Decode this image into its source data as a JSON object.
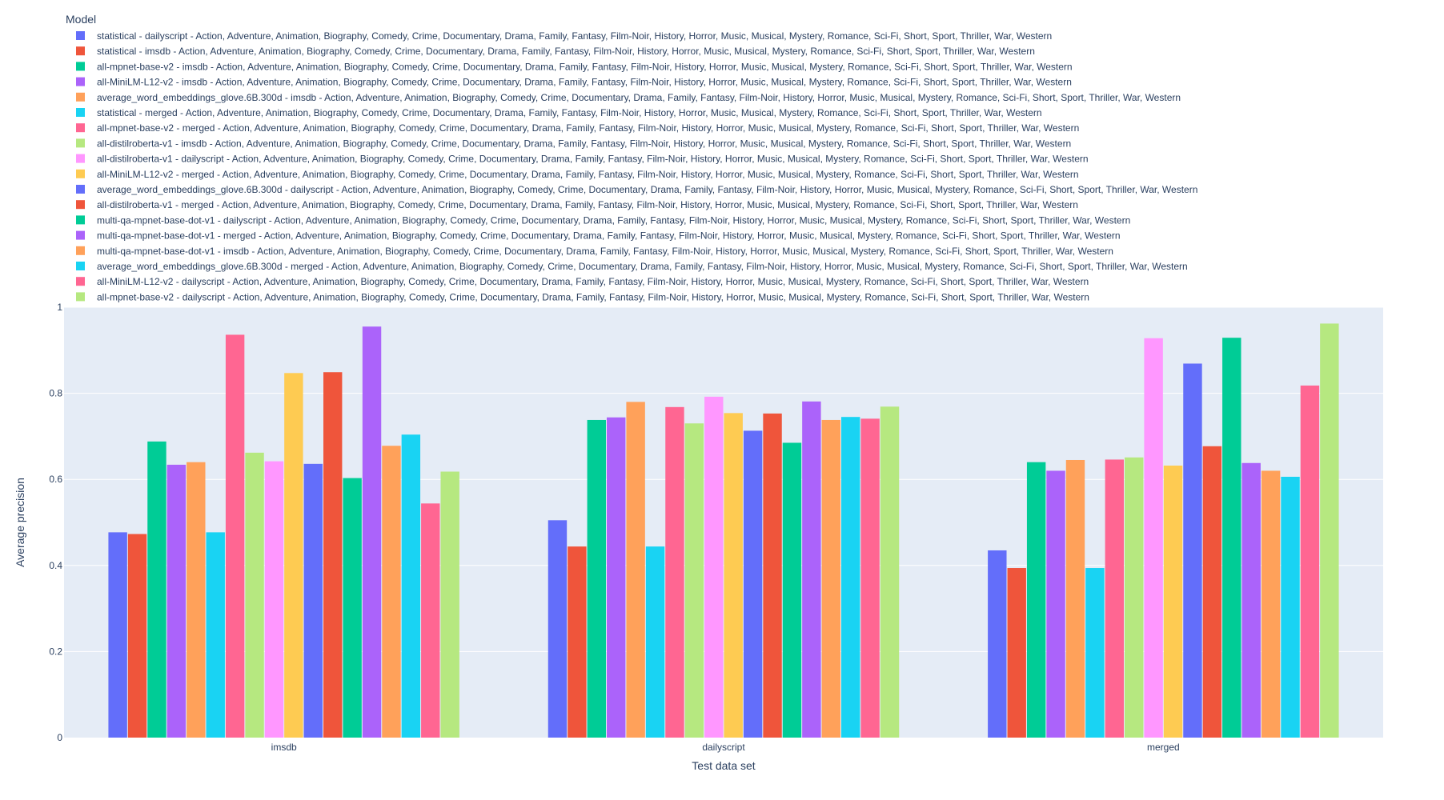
{
  "chart_data": {
    "type": "bar",
    "legend_title": "Model",
    "legend_position": "top-left",
    "xlabel": "Test data set",
    "ylabel": "Average precision",
    "ylim": [
      0,
      1
    ],
    "yticks": [
      0,
      0.2,
      0.4,
      0.6,
      0.8,
      1
    ],
    "ytick_labels": [
      "0",
      "0.2",
      "0.4",
      "0.6",
      "0.8",
      "1"
    ],
    "grid": true,
    "plot_bgcolor": "#E5ECF6",
    "categories": [
      "imsdb",
      "dailyscript",
      "merged"
    ],
    "series": [
      {
        "name": "statistical - dailyscript - Action, Adventure, Animation, Biography, Comedy, Crime, Documentary, Drama, Family, Fantasy, Film-Noir, History, Horror, Music, Musical, Mystery, Romance, Sci-Fi, Short, Sport, Thriller, War, Western",
        "color": "#636EFA",
        "values": [
          0.477,
          0.505,
          0.435
        ]
      },
      {
        "name": "statistical - imsdb - Action, Adventure, Animation, Biography, Comedy, Crime, Documentary, Drama, Family, Fantasy, Film-Noir, History, Horror, Music, Musical, Mystery, Romance, Sci-Fi, Short, Sport, Thriller, War, Western",
        "color": "#EF553B",
        "values": [
          0.473,
          0.444,
          0.394
        ]
      },
      {
        "name": "all-mpnet-base-v2 - imsdb - Action, Adventure, Animation, Biography, Comedy, Crime, Documentary, Drama, Family, Fantasy, Film-Noir, History, Horror, Music, Musical, Mystery, Romance, Sci-Fi, Short, Sport, Thriller, War, Western",
        "color": "#00CC96",
        "values": [
          0.688,
          0.738,
          0.64
        ]
      },
      {
        "name": "all-MiniLM-L12-v2 - imsdb - Action, Adventure, Animation, Biography, Comedy, Crime, Documentary, Drama, Family, Fantasy, Film-Noir, History, Horror, Music, Musical, Mystery, Romance, Sci-Fi, Short, Sport, Thriller, War, Western",
        "color": "#AB63FA",
        "values": [
          0.634,
          0.744,
          0.62
        ]
      },
      {
        "name": "average_word_embeddings_glove.6B.300d - imsdb - Action, Adventure, Animation, Biography, Comedy, Crime, Documentary, Drama, Family, Fantasy, Film-Noir, History, Horror, Music, Musical, Mystery, Romance, Sci-Fi, Short, Sport, Thriller, War, Western",
        "color": "#FFA15A",
        "values": [
          0.64,
          0.78,
          0.645
        ]
      },
      {
        "name": "statistical - merged - Action, Adventure, Animation, Biography, Comedy, Crime, Documentary, Drama, Family, Fantasy, Film-Noir, History, Horror, Music, Musical, Mystery, Romance, Sci-Fi, Short, Sport, Thriller, War, Western",
        "color": "#19D3F3",
        "values": [
          0.477,
          0.444,
          0.394
        ]
      },
      {
        "name": "all-mpnet-base-v2 - merged - Action, Adventure, Animation, Biography, Comedy, Crime, Documentary, Drama, Family, Fantasy, Film-Noir, History, Horror, Music, Musical, Mystery, Romance, Sci-Fi, Short, Sport, Thriller, War, Western",
        "color": "#FF6692",
        "values": [
          0.936,
          0.768,
          0.646
        ]
      },
      {
        "name": "all-distilroberta-v1 - imsdb - Action, Adventure, Animation, Biography, Comedy, Crime, Documentary, Drama, Family, Fantasy, Film-Noir, History, Horror, Music, Musical, Mystery, Romance, Sci-Fi, Short, Sport, Thriller, War, Western",
        "color": "#B6E880",
        "values": [
          0.662,
          0.73,
          0.651
        ]
      },
      {
        "name": "all-distilroberta-v1 - dailyscript - Action, Adventure, Animation, Biography, Comedy, Crime, Documentary, Drama, Family, Fantasy, Film-Noir, History, Horror, Music, Musical, Mystery, Romance, Sci-Fi, Short, Sport, Thriller, War, Western",
        "color": "#FF97FF",
        "values": [
          0.642,
          0.792,
          0.928
        ]
      },
      {
        "name": "all-MiniLM-L12-v2 - merged - Action, Adventure, Animation, Biography, Comedy, Crime, Documentary, Drama, Family, Fantasy, Film-Noir, History, Horror, Music, Musical, Mystery, Romance, Sci-Fi, Short, Sport, Thriller, War, Western",
        "color": "#FECB52",
        "values": [
          0.847,
          0.754,
          0.632
        ]
      },
      {
        "name": "average_word_embeddings_glove.6B.300d - dailyscript - Action, Adventure, Animation, Biography, Comedy, Crime, Documentary, Drama, Family, Fantasy, Film-Noir, History, Horror, Music, Musical, Mystery, Romance, Sci-Fi, Short, Sport, Thriller, War, Western",
        "color": "#636EFA",
        "values": [
          0.636,
          0.713,
          0.869
        ]
      },
      {
        "name": "all-distilroberta-v1 - merged - Action, Adventure, Animation, Biography, Comedy, Crime, Documentary, Drama, Family, Fantasy, Film-Noir, History, Horror, Music, Musical, Mystery, Romance, Sci-Fi, Short, Sport, Thriller, War, Western",
        "color": "#EF553B",
        "values": [
          0.849,
          0.753,
          0.677
        ]
      },
      {
        "name": "multi-qa-mpnet-base-dot-v1 - dailyscript - Action, Adventure, Animation, Biography, Comedy, Crime, Documentary, Drama, Family, Fantasy, Film-Noir, History, Horror, Music, Musical, Mystery, Romance, Sci-Fi, Short, Sport, Thriller, War, Western",
        "color": "#00CC96",
        "values": [
          0.603,
          0.685,
          0.929
        ]
      },
      {
        "name": "multi-qa-mpnet-base-dot-v1 - merged - Action, Adventure, Animation, Biography, Comedy, Crime, Documentary, Drama, Family, Fantasy, Film-Noir, History, Horror, Music, Musical, Mystery, Romance, Sci-Fi, Short, Sport, Thriller, War, Western",
        "color": "#AB63FA",
        "values": [
          0.955,
          0.781,
          0.638
        ]
      },
      {
        "name": "multi-qa-mpnet-base-dot-v1 - imsdb - Action, Adventure, Animation, Biography, Comedy, Crime, Documentary, Drama, Family, Fantasy, Film-Noir, History, Horror, Music, Musical, Mystery, Romance, Sci-Fi, Short, Sport, Thriller, War, Western",
        "color": "#FFA15A",
        "values": [
          0.678,
          0.738,
          0.62
        ]
      },
      {
        "name": "average_word_embeddings_glove.6B.300d - merged - Action, Adventure, Animation, Biography, Comedy, Crime, Documentary, Drama, Family, Fantasy, Film-Noir, History, Horror, Music, Musical, Mystery, Romance, Sci-Fi, Short, Sport, Thriller, War, Western",
        "color": "#19D3F3",
        "values": [
          0.704,
          0.745,
          0.606
        ]
      },
      {
        "name": "all-MiniLM-L12-v2 - dailyscript - Action, Adventure, Animation, Biography, Comedy, Crime, Documentary, Drama, Family, Fantasy, Film-Noir, History, Horror, Music, Musical, Mystery, Romance, Sci-Fi, Short, Sport, Thriller, War, Western",
        "color": "#FF6692",
        "values": [
          0.544,
          0.741,
          0.818
        ]
      },
      {
        "name": "all-mpnet-base-v2 - dailyscript - Action, Adventure, Animation, Biography, Comedy, Crime, Documentary, Drama, Family, Fantasy, Film-Noir, History, Horror, Music, Musical, Mystery, Romance, Sci-Fi, Short, Sport, Thriller, War, Western",
        "color": "#B6E880",
        "values": [
          0.618,
          0.769,
          0.962
        ]
      }
    ]
  }
}
